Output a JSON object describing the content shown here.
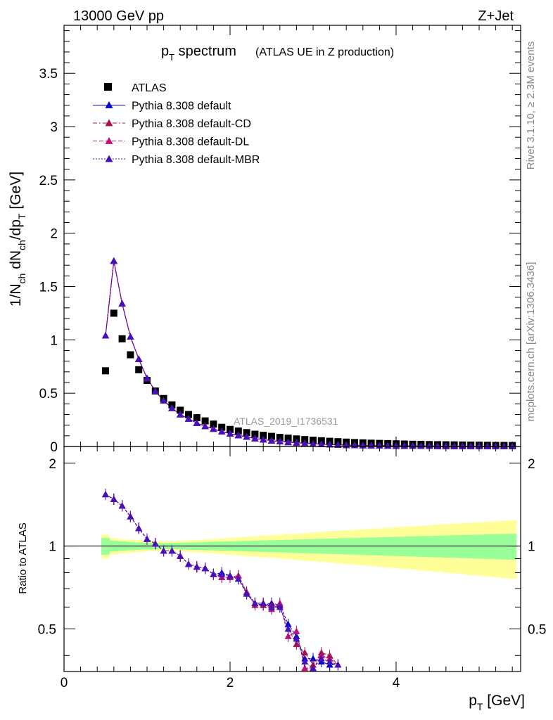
{
  "header": {
    "energy_label": "13000 GeV pp",
    "process_label": "Z+Jet"
  },
  "side_labels": {
    "rivet": "Rivet 3.1.10, ≥ 2.3M events",
    "mcplots": "mcplots.cern.ch [arXiv:1306.3436]"
  },
  "chart_data": {
    "type": "scatter",
    "title_main": "p",
    "title_main_sub": "T",
    "title_main_rest": " spectrum",
    "title_paren": "(ATLAS UE in Z production)",
    "analysis_label": "ATLAS_2019_I1736531",
    "xlabel": "p",
    "xlabel_sub": "T",
    "xlabel_unit": " [GeV]",
    "xlim": [
      0,
      5.5
    ],
    "xticks": [
      "0",
      "2",
      "4"
    ],
    "main_panel": {
      "ylabel_parts": [
        "1/N",
        "ch",
        " dN",
        "ch",
        "/dp",
        "T",
        " [GeV]"
      ],
      "ylim": [
        0,
        3.95
      ],
      "yticks": [
        "0",
        "0.5",
        "1",
        "1.5",
        "2",
        "2.5",
        "3",
        "3.5"
      ],
      "x": [
        0.5,
        0.6,
        0.7,
        0.8,
        0.9,
        1.0,
        1.1,
        1.2,
        1.3,
        1.4,
        1.5,
        1.6,
        1.7,
        1.8,
        1.9,
        2.0,
        2.1,
        2.2,
        2.3,
        2.4,
        2.5,
        2.6,
        2.7,
        2.8,
        2.9,
        3.0,
        3.1,
        3.2,
        3.3,
        3.4,
        3.5,
        3.6,
        3.7,
        3.8,
        3.9,
        4.0,
        4.1,
        4.2,
        4.3,
        4.4,
        4.5,
        4.6,
        4.7,
        4.8,
        4.9,
        5.0,
        5.1,
        5.2,
        5.3,
        5.4
      ],
      "series": [
        {
          "name": "ATLAS",
          "color": "#000000",
          "marker": "square",
          "values": [
            0.71,
            1.25,
            1.01,
            0.86,
            0.72,
            0.62,
            0.52,
            0.45,
            0.39,
            0.34,
            0.3,
            0.27,
            0.24,
            0.21,
            0.18,
            0.16,
            0.145,
            0.13,
            0.115,
            0.105,
            0.095,
            0.085,
            0.078,
            0.071,
            0.065,
            0.059,
            0.054,
            0.049,
            0.045,
            0.041,
            0.037,
            0.034,
            0.031,
            0.029,
            0.027,
            0.025,
            0.023,
            0.021,
            0.02,
            0.018,
            0.017,
            0.016,
            0.015,
            0.014,
            0.013,
            0.012,
            0.011,
            0.01,
            0.01,
            0.009
          ]
        },
        {
          "name": "Pythia 8.308 default",
          "color": "#0000cc",
          "marker": "triangle",
          "dash": "",
          "values": [
            1.04,
            1.74,
            1.34,
            1.03,
            0.82,
            0.64,
            0.52,
            0.43,
            0.36,
            0.3,
            0.26,
            0.22,
            0.19,
            0.165,
            0.14,
            0.12,
            0.105,
            0.09,
            0.075,
            0.065,
            0.055,
            0.047,
            0.04,
            0.035,
            0.03,
            0.025,
            0.021,
            0.018,
            0.015,
            0.013,
            0.011,
            0.01,
            0.009,
            0.008,
            0.007,
            0.006,
            0.005,
            0.005,
            0.004,
            0.004,
            0.003,
            0.003,
            0.003,
            0.002,
            0.002,
            0.002,
            0.002,
            0.001,
            0.001,
            0.001
          ]
        },
        {
          "name": "Pythia 8.308 default-CD",
          "color": "#aa1144",
          "marker": "triangle",
          "dash": "6,3,2,3",
          "values": [
            1.04,
            1.74,
            1.34,
            1.03,
            0.82,
            0.64,
            0.52,
            0.43,
            0.36,
            0.3,
            0.26,
            0.22,
            0.19,
            0.165,
            0.14,
            0.12,
            0.105,
            0.09,
            0.075,
            0.065,
            0.055,
            0.047,
            0.04,
            0.035,
            0.03,
            0.025,
            0.021,
            0.018,
            0.015,
            0.013,
            0.011,
            0.01,
            0.009,
            0.008,
            0.007,
            0.006,
            0.005,
            0.005,
            0.004,
            0.004,
            0.003,
            0.003,
            0.003,
            0.002,
            0.002,
            0.002,
            0.002,
            0.001,
            0.001,
            0.001
          ]
        },
        {
          "name": "Pythia 8.308 default-DL",
          "color": "#bb1177",
          "marker": "triangle",
          "dash": "6,3",
          "values": [
            1.04,
            1.74,
            1.34,
            1.03,
            0.82,
            0.64,
            0.52,
            0.43,
            0.36,
            0.3,
            0.26,
            0.22,
            0.19,
            0.165,
            0.14,
            0.12,
            0.105,
            0.09,
            0.075,
            0.065,
            0.055,
            0.047,
            0.04,
            0.035,
            0.03,
            0.025,
            0.021,
            0.018,
            0.015,
            0.013,
            0.011,
            0.01,
            0.009,
            0.008,
            0.007,
            0.006,
            0.005,
            0.005,
            0.004,
            0.004,
            0.003,
            0.003,
            0.003,
            0.002,
            0.002,
            0.002,
            0.002,
            0.001,
            0.001,
            0.001
          ]
        },
        {
          "name": "Pythia 8.308 default-MBR",
          "color": "#4411bb",
          "marker": "triangle",
          "dash": "2,2",
          "values": [
            1.04,
            1.74,
            1.34,
            1.03,
            0.82,
            0.64,
            0.52,
            0.43,
            0.36,
            0.3,
            0.26,
            0.22,
            0.19,
            0.165,
            0.14,
            0.12,
            0.105,
            0.09,
            0.075,
            0.065,
            0.055,
            0.047,
            0.04,
            0.035,
            0.03,
            0.025,
            0.021,
            0.018,
            0.015,
            0.013,
            0.011,
            0.01,
            0.009,
            0.008,
            0.007,
            0.006,
            0.005,
            0.005,
            0.004,
            0.004,
            0.003,
            0.003,
            0.003,
            0.002,
            0.002,
            0.002,
            0.002,
            0.001,
            0.001,
            0.001
          ]
        }
      ]
    },
    "ratio_panel": {
      "ylabel": "Ratio to ATLAS",
      "ylim": [
        0.35,
        2.3
      ],
      "yticks": [
        "0.5",
        "1",
        "2"
      ],
      "reference": 1.0,
      "band_x": [
        0.45,
        0.55,
        0.65,
        0.75,
        0.85,
        0.95,
        1.05,
        1.15,
        1.25,
        1.35,
        1.45,
        1.55,
        1.65,
        1.75,
        1.85,
        1.95,
        2.05,
        2.15,
        2.25,
        2.35,
        2.45,
        2.55,
        2.65,
        2.75,
        2.85,
        2.95,
        3.05,
        3.15,
        3.25,
        3.35,
        3.45,
        3.55,
        3.65,
        3.75,
        3.85,
        3.95,
        4.05,
        4.15,
        4.25,
        4.35,
        4.45,
        4.55,
        4.65,
        4.75,
        4.85,
        4.95,
        5.05,
        5.15,
        5.25,
        5.35,
        5.45
      ],
      "band_inner": [
        0.07,
        0.045,
        0.04,
        0.035,
        0.03,
        0.028,
        0.026,
        0.025,
        0.026,
        0.028,
        0.03,
        0.032,
        0.034,
        0.036,
        0.038,
        0.04,
        0.042,
        0.044,
        0.046,
        0.048,
        0.05,
        0.052,
        0.054,
        0.056,
        0.058,
        0.06,
        0.062,
        0.064,
        0.066,
        0.068,
        0.07,
        0.072,
        0.074,
        0.076,
        0.078,
        0.08,
        0.082,
        0.084,
        0.086,
        0.088,
        0.09,
        0.092,
        0.094,
        0.096,
        0.098,
        0.1,
        0.102,
        0.104,
        0.106,
        0.108,
        0.11
      ],
      "band_outer": [
        0.1,
        0.07,
        0.06,
        0.055,
        0.05,
        0.045,
        0.042,
        0.04,
        0.042,
        0.045,
        0.048,
        0.052,
        0.056,
        0.06,
        0.065,
        0.07,
        0.075,
        0.08,
        0.085,
        0.09,
        0.095,
        0.1,
        0.105,
        0.11,
        0.115,
        0.12,
        0.125,
        0.13,
        0.135,
        0.14,
        0.145,
        0.15,
        0.155,
        0.16,
        0.165,
        0.17,
        0.175,
        0.18,
        0.185,
        0.19,
        0.195,
        0.2,
        0.205,
        0.21,
        0.215,
        0.22,
        0.225,
        0.23,
        0.235,
        0.24,
        0.245
      ],
      "x": [
        0.5,
        0.6,
        0.7,
        0.8,
        0.9,
        1.0,
        1.1,
        1.2,
        1.3,
        1.4,
        1.5,
        1.6,
        1.7,
        1.8,
        1.9,
        2.0,
        2.1,
        2.2,
        2.3,
        2.4,
        2.5,
        2.6,
        2.7,
        2.8,
        2.9,
        3.0,
        3.1,
        3.2,
        3.3
      ],
      "series": [
        {
          "name": "Pythia 8.308 default",
          "color": "#0000cc",
          "values": [
            1.54,
            1.48,
            1.4,
            1.28,
            1.16,
            1.06,
            1.02,
            0.96,
            0.96,
            0.92,
            0.86,
            0.84,
            0.83,
            0.79,
            0.8,
            0.78,
            0.76,
            0.68,
            0.62,
            0.61,
            0.62,
            0.61,
            0.52,
            0.47,
            0.39,
            0.39,
            0.38,
            0.37,
            0.37
          ]
        },
        {
          "name": "Pythia 8.308 default-CD",
          "color": "#aa1144",
          "values": [
            1.54,
            1.48,
            1.4,
            1.28,
            1.16,
            1.06,
            1.02,
            0.96,
            0.96,
            0.92,
            0.86,
            0.84,
            0.83,
            0.79,
            0.77,
            0.77,
            0.78,
            0.68,
            0.61,
            0.61,
            0.61,
            0.6,
            0.5,
            0.44,
            0.41,
            0.37,
            0.41,
            0.4,
            0.37
          ]
        },
        {
          "name": "Pythia 8.308 default-DL",
          "color": "#bb1177",
          "values": [
            1.54,
            1.48,
            1.4,
            1.28,
            1.16,
            1.06,
            1.02,
            0.96,
            0.96,
            0.92,
            0.86,
            0.84,
            0.83,
            0.79,
            0.77,
            0.77,
            0.78,
            0.67,
            0.62,
            0.62,
            0.59,
            0.62,
            0.47,
            0.49,
            0.36,
            0.36,
            0.4,
            0.39,
            0.37
          ]
        },
        {
          "name": "Pythia 8.308 default-MBR",
          "color": "#4411bb",
          "values": [
            1.54,
            1.48,
            1.4,
            1.28,
            1.16,
            1.06,
            1.02,
            0.96,
            0.96,
            0.92,
            0.86,
            0.84,
            0.83,
            0.79,
            0.79,
            0.78,
            0.76,
            0.67,
            0.62,
            0.62,
            0.6,
            0.6,
            0.5,
            0.46,
            0.38,
            0.36,
            0.39,
            0.38,
            0.37
          ]
        }
      ]
    },
    "legend_position": "top-left",
    "colors": {
      "band_inner": "#99ff99",
      "band_outer": "#ffff99"
    }
  }
}
